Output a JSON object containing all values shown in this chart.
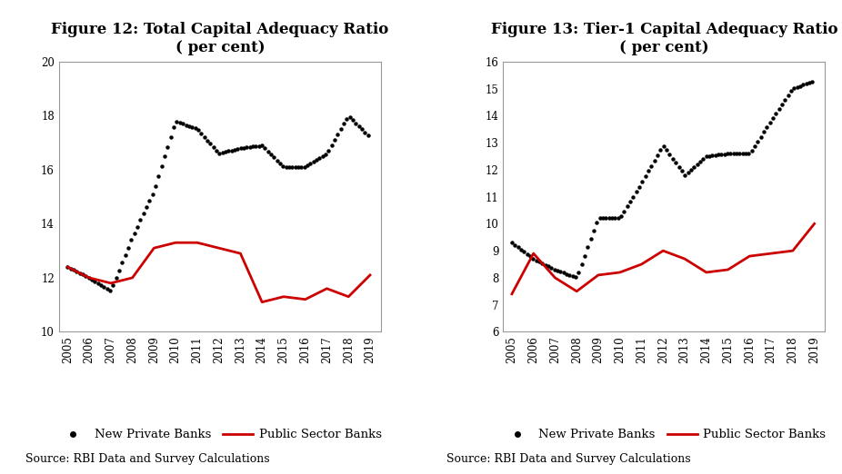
{
  "years": [
    2005,
    2006,
    2007,
    2008,
    2009,
    2010,
    2011,
    2012,
    2013,
    2014,
    2015,
    2016,
    2017,
    2018,
    2019
  ],
  "fig12": {
    "title": "Figure 12: Total Capital Adequacy Ratio\n( per cent)",
    "new_private": [
      12.4,
      12.0,
      11.5,
      13.5,
      15.2,
      17.8,
      17.5,
      16.6,
      16.8,
      16.9,
      16.1,
      16.1,
      16.6,
      18.0,
      17.2
    ],
    "public_sector": [
      12.4,
      12.0,
      11.8,
      12.0,
      13.1,
      13.3,
      13.3,
      13.1,
      12.9,
      11.1,
      11.3,
      11.2,
      11.6,
      11.3,
      12.1
    ],
    "ylim": [
      10,
      20
    ],
    "yticks": [
      10,
      12,
      14,
      16,
      18,
      20
    ]
  },
  "fig13": {
    "title": "Figure 13: Tier-1 Capital Adequacy Ratio\n( per cent)",
    "new_private": [
      9.3,
      8.7,
      8.3,
      8.0,
      10.2,
      10.2,
      11.5,
      12.9,
      11.8,
      12.5,
      12.6,
      12.6,
      13.8,
      15.0,
      15.3
    ],
    "public_sector": [
      7.4,
      8.9,
      8.0,
      7.5,
      8.1,
      8.2,
      8.5,
      9.0,
      8.7,
      8.2,
      8.3,
      8.8,
      8.9,
      9.0,
      10.0
    ],
    "ylim": [
      6,
      16
    ],
    "yticks": [
      6,
      7,
      8,
      9,
      10,
      11,
      12,
      13,
      14,
      15,
      16
    ]
  },
  "source_text": "Source: RBI Data and Survey Calculations",
  "private_color": "#000000",
  "public_color": "#cc0000",
  "bg_color": "#ffffff",
  "title_fontsize": 12,
  "label_fontsize": 9.5,
  "tick_fontsize": 8.5
}
